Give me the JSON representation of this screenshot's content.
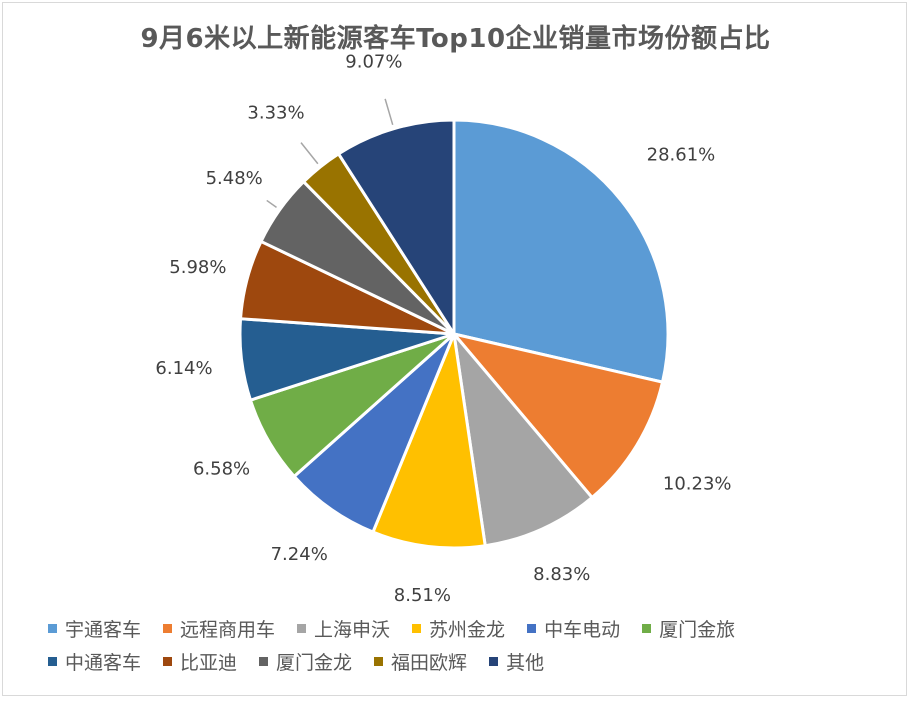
{
  "chart_data": {
    "type": "pie",
    "title": "9月6米以上新能源客车Top10企业销量市场份额占比",
    "categories": [
      "宇通客车",
      "远程商用车",
      "上海申沃",
      "苏州金龙",
      "中车电动",
      "厦门金旅",
      "中通客车",
      "比亚迪",
      "厦门金龙",
      "福田欧辉",
      "其他"
    ],
    "values": [
      28.61,
      10.23,
      8.83,
      8.51,
      7.24,
      6.58,
      6.14,
      5.98,
      5.48,
      3.33,
      9.07
    ],
    "labels": [
      "28.61%",
      "10.23%",
      "8.83%",
      "8.51%",
      "7.24%",
      "6.58%",
      "6.14%",
      "5.98%",
      "5.48%",
      "3.33%",
      "9.07%"
    ],
    "colors": [
      "#5B9BD5",
      "#ED7D31",
      "#A5A5A5",
      "#FFC000",
      "#4472C4",
      "#70AD47",
      "#255E91",
      "#9E480E",
      "#636363",
      "#997300",
      "#264478"
    ],
    "legend_position": "bottom"
  }
}
